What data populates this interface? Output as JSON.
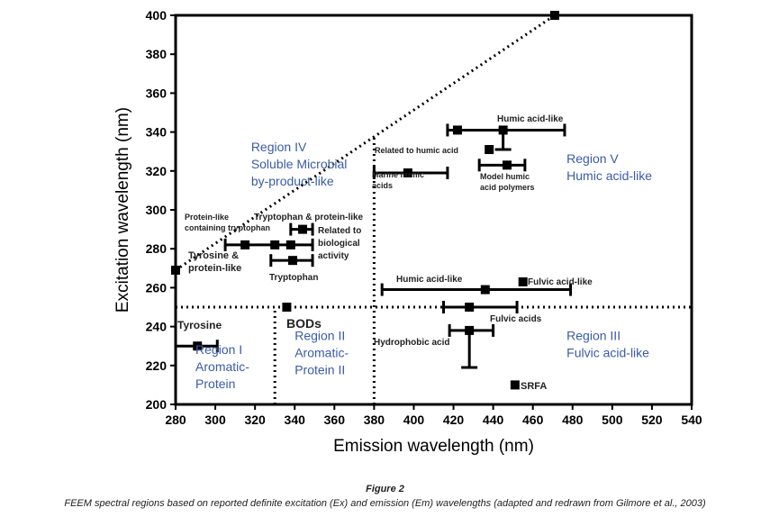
{
  "chart_data": {
    "type": "scatter",
    "xlabel": "Emission wavelength (nm)",
    "ylabel": "Excitation wavelength (nm)",
    "xlim": [
      280,
      540
    ],
    "ylim": [
      200,
      400
    ],
    "xticks": [
      280,
      300,
      320,
      340,
      360,
      380,
      400,
      420,
      440,
      460,
      480,
      500,
      520,
      540
    ],
    "yticks": [
      200,
      220,
      240,
      260,
      280,
      300,
      320,
      340,
      360,
      380,
      400
    ],
    "grid": false,
    "points": [
      {
        "label": "Tyrosine",
        "x": 291,
        "y": 230,
        "xerr": [
          280,
          301
        ]
      },
      {
        "label": "BODs",
        "x": 336,
        "y": 250
      },
      {
        "label": "Tyrosine & protein-like",
        "x": 280,
        "y": 269
      },
      {
        "label": "Protein-like containing tryptophan",
        "x": 315,
        "y": 282,
        "xerr": [
          305,
          349
        ]
      },
      {
        "label": "",
        "x": 330,
        "y": 282
      },
      {
        "label": "",
        "x": 338,
        "y": 282
      },
      {
        "label": "Tryptophan & protein-like",
        "x": 344,
        "y": 290,
        "xerr": [
          338,
          349
        ]
      },
      {
        "label": "Tryptophan",
        "x": 339,
        "y": 274,
        "xerr": [
          328,
          349
        ]
      },
      {
        "label": "Marine humic acids",
        "x": 397,
        "y": 319,
        "xerr": [
          380,
          417
        ]
      },
      {
        "label": "Humic acid-like",
        "x": 422,
        "y": 341
      },
      {
        "label": "",
        "x": 445,
        "y": 341,
        "xerr": [
          417,
          476
        ],
        "yerr": [
          331,
          341
        ]
      },
      {
        "label": "Related to humic acid",
        "x": 438,
        "y": 331
      },
      {
        "label": "Model humic acid polymers",
        "x": 447,
        "y": 323,
        "xerr": [
          433,
          456
        ]
      },
      {
        "label": "Humic acid-like",
        "x": 436,
        "y": 259,
        "xerr": [
          384,
          479
        ]
      },
      {
        "label": "Fulvic acid-like",
        "x": 455,
        "y": 263
      },
      {
        "label": "Fulvic acids",
        "x": 428,
        "y": 250,
        "xerr": [
          415,
          452
        ]
      },
      {
        "label": "Hydrophobic acid",
        "x": 428,
        "y": 238,
        "xerr": [
          418,
          440
        ],
        "yerr": [
          219,
          238
        ]
      },
      {
        "label": "SRFA",
        "x": 451,
        "y": 210
      },
      {
        "label": "",
        "x": 471,
        "y": 400
      }
    ],
    "boundaries": [
      {
        "from": [
          280,
          269
        ],
        "to": [
          471,
          400
        ]
      },
      {
        "from": [
          280,
          250
        ],
        "to": [
          540,
          250
        ]
      },
      {
        "from": [
          330,
          200
        ],
        "to": [
          330,
          250
        ]
      },
      {
        "from": [
          380,
          200
        ],
        "to": [
          380,
          337
        ]
      }
    ],
    "regions": [
      {
        "lines": [
          "Region I",
          "Aromatic-",
          "Protein"
        ],
        "x": 290,
        "y": 226
      },
      {
        "lines": [
          "Region II",
          "Aromatic-",
          "Protein II"
        ],
        "x": 340,
        "y": 233
      },
      {
        "lines": [
          "Region III",
          "Fulvic acid-like"
        ],
        "x": 477,
        "y": 233
      },
      {
        "lines": [
          "Region IV",
          "Soluble Microbial",
          "by-product-like"
        ],
        "x": 338,
        "y": 330
      },
      {
        "lines": [
          "Region V",
          "Humic acid-like"
        ],
        "x": 477,
        "y": 324
      }
    ],
    "region_color": "#3a5ba8"
  },
  "caption": {
    "title": "Figure 2",
    "text": "FEEM spectral regions based on reported definite excitation (Ex) and emission (Em) wavelengths (adapted and redrawn from Gilmore et al., 2003)"
  }
}
